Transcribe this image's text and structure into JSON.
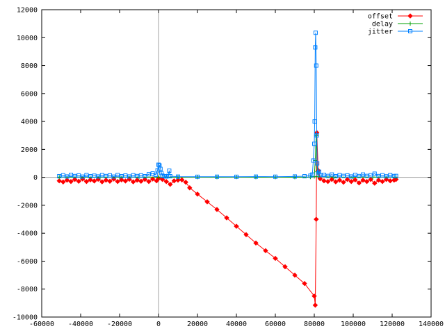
{
  "chart_data": {
    "type": "line",
    "title": "",
    "xlabel": "",
    "ylabel": "",
    "xlim": [
      -60000,
      140000
    ],
    "ylim": [
      -10000,
      12000
    ],
    "xticks": [
      -60000,
      -40000,
      -20000,
      0,
      20000,
      40000,
      60000,
      80000,
      100000,
      120000,
      140000
    ],
    "yticks": [
      -10000,
      -8000,
      -6000,
      -4000,
      -2000,
      0,
      2000,
      4000,
      6000,
      8000,
      10000,
      12000
    ],
    "grid": false,
    "zero_axes": true,
    "legend_position": "top-right",
    "series": [
      {
        "name": "offset",
        "color": "#ff0000",
        "marker": "diamond",
        "points": [
          [
            -51000,
            -250
          ],
          [
            -49000,
            -330
          ],
          [
            -47000,
            -200
          ],
          [
            -45000,
            -300
          ],
          [
            -43000,
            -150
          ],
          [
            -41000,
            -280
          ],
          [
            -39000,
            -120
          ],
          [
            -37000,
            -300
          ],
          [
            -35000,
            -180
          ],
          [
            -33000,
            -260
          ],
          [
            -31000,
            -140
          ],
          [
            -29000,
            -320
          ],
          [
            -27000,
            -200
          ],
          [
            -25000,
            -280
          ],
          [
            -23000,
            -120
          ],
          [
            -21000,
            -300
          ],
          [
            -19000,
            -180
          ],
          [
            -17000,
            -260
          ],
          [
            -15000,
            -140
          ],
          [
            -13000,
            -320
          ],
          [
            -11000,
            -200
          ],
          [
            -9000,
            -280
          ],
          [
            -7000,
            -150
          ],
          [
            -5000,
            -300
          ],
          [
            -3000,
            -120
          ],
          [
            -1000,
            -250
          ],
          [
            0,
            -80
          ],
          [
            2000,
            -150
          ],
          [
            4000,
            -300
          ],
          [
            6000,
            -500
          ],
          [
            8000,
            -250
          ],
          [
            10000,
            -200
          ],
          [
            12000,
            -180
          ],
          [
            14000,
            -350
          ],
          [
            16000,
            -750
          ],
          [
            20000,
            -1200
          ],
          [
            25000,
            -1750
          ],
          [
            30000,
            -2300
          ],
          [
            35000,
            -2900
          ],
          [
            40000,
            -3500
          ],
          [
            45000,
            -4100
          ],
          [
            50000,
            -4700
          ],
          [
            55000,
            -5250
          ],
          [
            60000,
            -5800
          ],
          [
            65000,
            -6400
          ],
          [
            70000,
            -7000
          ],
          [
            75000,
            -7600
          ],
          [
            80000,
            -8500
          ],
          [
            80500,
            -9150
          ],
          [
            81000,
            -3000
          ],
          [
            81300,
            3200
          ],
          [
            82000,
            500
          ],
          [
            83000,
            -100
          ],
          [
            85000,
            -250
          ],
          [
            87000,
            -300
          ],
          [
            89000,
            -150
          ],
          [
            91000,
            -320
          ],
          [
            93000,
            -200
          ],
          [
            95000,
            -350
          ],
          [
            97000,
            -150
          ],
          [
            99000,
            -300
          ],
          [
            101000,
            -180
          ],
          [
            103000,
            -400
          ],
          [
            105000,
            -200
          ],
          [
            107000,
            -300
          ],
          [
            109000,
            -150
          ],
          [
            111000,
            -420
          ],
          [
            113000,
            -200
          ],
          [
            115000,
            -300
          ],
          [
            117000,
            -150
          ],
          [
            119000,
            -250
          ],
          [
            121000,
            -200
          ],
          [
            122000,
            -150
          ]
        ]
      },
      {
        "name": "delay",
        "color": "#00a000",
        "marker": "plus",
        "points": [
          [
            -51000,
            10
          ],
          [
            -40000,
            15
          ],
          [
            -30000,
            10
          ],
          [
            -20000,
            20
          ],
          [
            -10000,
            10
          ],
          [
            0,
            15
          ],
          [
            10000,
            10
          ],
          [
            20000,
            15
          ],
          [
            30000,
            10
          ],
          [
            40000,
            20
          ],
          [
            50000,
            10
          ],
          [
            60000,
            15
          ],
          [
            70000,
            10
          ],
          [
            78000,
            20
          ],
          [
            80000,
            60
          ],
          [
            80500,
            1200
          ],
          [
            81000,
            3000
          ],
          [
            81500,
            400
          ],
          [
            82000,
            50
          ],
          [
            90000,
            15
          ],
          [
            100000,
            10
          ],
          [
            110000,
            20
          ],
          [
            122000,
            10
          ]
        ]
      },
      {
        "name": "jitter",
        "color": "#0080ff",
        "marker": "square",
        "points": [
          [
            -51000,
            80
          ],
          [
            -49000,
            150
          ],
          [
            -47000,
            60
          ],
          [
            -45000,
            180
          ],
          [
            -43000,
            90
          ],
          [
            -41000,
            140
          ],
          [
            -39000,
            50
          ],
          [
            -37000,
            170
          ],
          [
            -35000,
            80
          ],
          [
            -33000,
            120
          ],
          [
            -31000,
            60
          ],
          [
            -29000,
            160
          ],
          [
            -27000,
            90
          ],
          [
            -25000,
            140
          ],
          [
            -23000,
            50
          ],
          [
            -21000,
            170
          ],
          [
            -19000,
            80
          ],
          [
            -17000,
            130
          ],
          [
            -15000,
            60
          ],
          [
            -13000,
            150
          ],
          [
            -11000,
            90
          ],
          [
            -9000,
            140
          ],
          [
            -7000,
            80
          ],
          [
            -5000,
            220
          ],
          [
            -3000,
            280
          ],
          [
            -1500,
            180
          ],
          [
            -500,
            500
          ],
          [
            0,
            900
          ],
          [
            500,
            850
          ],
          [
            1000,
            600
          ],
          [
            1500,
            300
          ],
          [
            2000,
            120
          ],
          [
            3000,
            80
          ],
          [
            4000,
            60
          ],
          [
            5000,
            100
          ],
          [
            5500,
            480
          ],
          [
            6000,
            80
          ],
          [
            10000,
            50
          ],
          [
            20000,
            40
          ],
          [
            30000,
            45
          ],
          [
            40000,
            40
          ],
          [
            50000,
            50
          ],
          [
            60000,
            45
          ],
          [
            70000,
            60
          ],
          [
            75000,
            80
          ],
          [
            78000,
            120
          ],
          [
            79000,
            200
          ],
          [
            79500,
            1200
          ],
          [
            80000,
            2400
          ],
          [
            80200,
            4000
          ],
          [
            80500,
            9300
          ],
          [
            80700,
            10350
          ],
          [
            81000,
            8000
          ],
          [
            81300,
            3000
          ],
          [
            81500,
            1000
          ],
          [
            82000,
            300
          ],
          [
            82500,
            400
          ],
          [
            83000,
            150
          ],
          [
            85000,
            180
          ],
          [
            87000,
            100
          ],
          [
            89000,
            200
          ],
          [
            91000,
            80
          ],
          [
            93000,
            160
          ],
          [
            95000,
            100
          ],
          [
            97000,
            140
          ],
          [
            99000,
            60
          ],
          [
            101000,
            180
          ],
          [
            103000,
            90
          ],
          [
            105000,
            200
          ],
          [
            107000,
            100
          ],
          [
            109000,
            150
          ],
          [
            111000,
            260
          ],
          [
            113000,
            90
          ],
          [
            115000,
            150
          ],
          [
            117000,
            70
          ],
          [
            119000,
            160
          ],
          [
            121000,
            90
          ],
          [
            122000,
            100
          ]
        ]
      }
    ]
  }
}
